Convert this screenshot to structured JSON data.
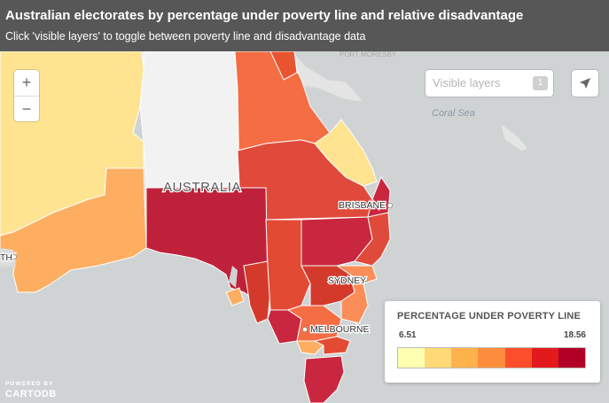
{
  "header": {
    "title": "Australian electorates by percentage under poverty line and relative disadvantage",
    "subtitle": "Click 'visible layers' to toggle between poverty line and disadvantage data"
  },
  "zoom": {
    "in_label": "+",
    "out_label": "−"
  },
  "layers": {
    "label": "Visible layers",
    "count": "1"
  },
  "map_labels": {
    "country": "AUSTRALIA",
    "sea": "Coral Sea",
    "brisbane": "BRISBANE",
    "sydney": "SYDNEY",
    "melbourne": "MELBOURNE",
    "perth_fragment": "TH",
    "port_moresby_fragment": "PORT MORESBY"
  },
  "legend": {
    "title": "PERCENTAGE UNDER POVERTY LINE",
    "min": "6.51",
    "max": "18.56",
    "colors": [
      "#ffffb2",
      "#fed976",
      "#feb24c",
      "#fd8d3c",
      "#fc4e2a",
      "#e31a1c",
      "#b10026"
    ]
  },
  "branding": {
    "powered_by": "POWERED BY",
    "name": "CARTODB"
  },
  "colors": {
    "land": "#e8e8e8",
    "sea": "#cfd3d4",
    "no_data": "#f2f2f2"
  }
}
